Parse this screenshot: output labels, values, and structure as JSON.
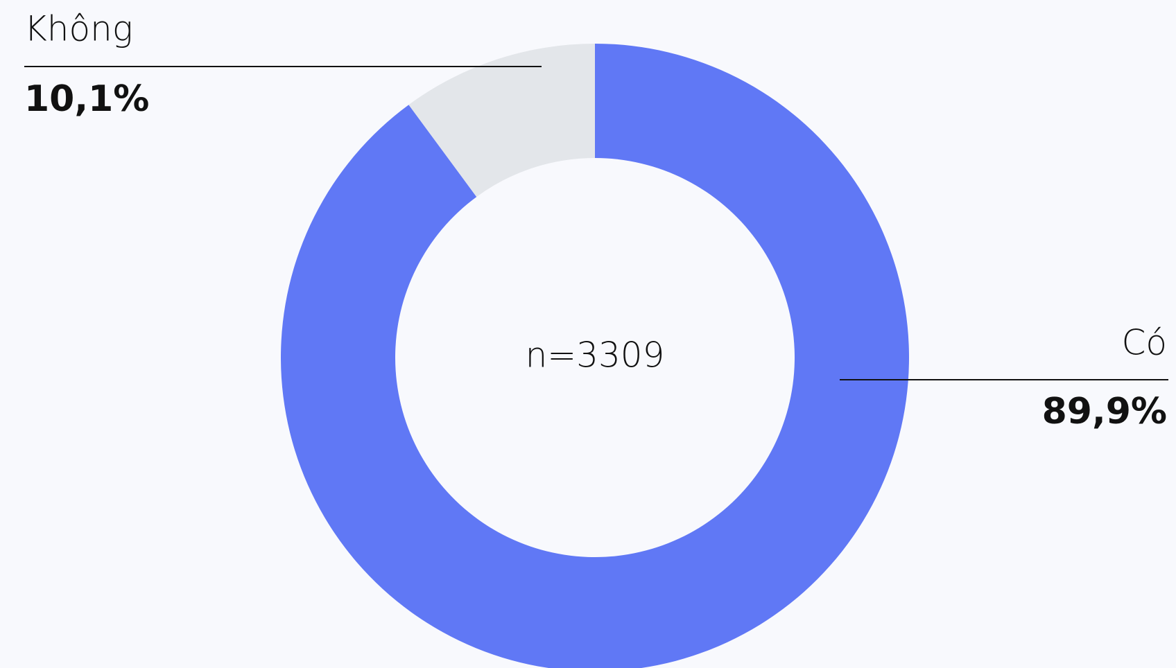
{
  "chart_data": {
    "type": "pie",
    "donut": true,
    "categories": [
      "Có",
      "Không"
    ],
    "values": [
      89.9,
      10.1
    ],
    "value_labels": [
      "89,9%",
      "10,1%"
    ],
    "colors": [
      "#6078f5",
      "#e3e6ea"
    ],
    "center_label": "n=3309"
  }
}
